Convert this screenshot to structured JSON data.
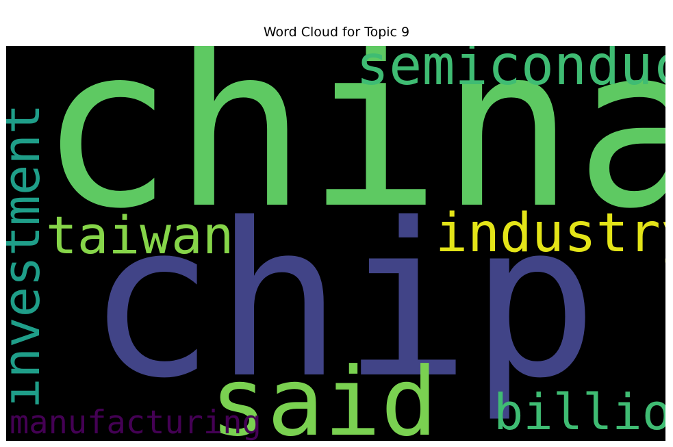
{
  "title": "Word Cloud for Topic 9",
  "chart_data": {
    "type": "wordcloud",
    "title": "Word Cloud for Topic 9",
    "background": "#000000",
    "words": [
      {
        "text": "china",
        "weight": 1.0,
        "color": "#5ec962",
        "orientation": "horizontal"
      },
      {
        "text": "chip",
        "weight": 0.95,
        "color": "#414487",
        "orientation": "horizontal"
      },
      {
        "text": "said",
        "weight": 0.42,
        "color": "#7ad151",
        "orientation": "horizontal"
      },
      {
        "text": "semiconductor",
        "weight": 0.24,
        "color": "#3fbc73",
        "orientation": "horizontal"
      },
      {
        "text": "industry",
        "weight": 0.24,
        "color": "#e3e418",
        "orientation": "horizontal"
      },
      {
        "text": "taiwan",
        "weight": 0.23,
        "color": "#86d549",
        "orientation": "horizontal"
      },
      {
        "text": "investment",
        "weight": 0.22,
        "color": "#1f9e89",
        "orientation": "vertical"
      },
      {
        "text": "billion",
        "weight": 0.22,
        "color": "#3fbc73",
        "orientation": "horizontal"
      },
      {
        "text": "manufacturing",
        "weight": 0.15,
        "color": "#440154",
        "orientation": "horizontal"
      }
    ]
  }
}
